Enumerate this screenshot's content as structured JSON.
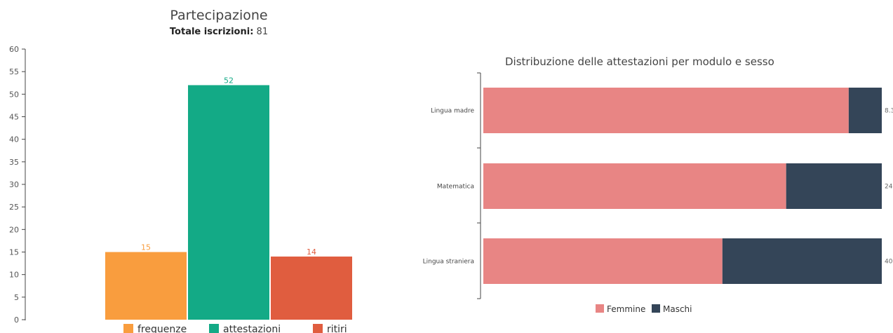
{
  "chart_data": [
    {
      "type": "bar",
      "title": "Partecipazione",
      "subtitle_label": "Totale iscrizioni:",
      "subtitle_value": "81",
      "categories": [
        "frequenze",
        "attestazioni",
        "ritiri"
      ],
      "values": [
        15,
        52,
        14
      ],
      "colors": [
        "#f99d3e",
        "#13aa86",
        "#e05d3f"
      ],
      "ylim": [
        0,
        60
      ],
      "yticks": [
        0,
        5,
        10,
        15,
        20,
        25,
        30,
        35,
        40,
        45,
        50,
        55,
        60
      ],
      "legend_position": "bottom"
    },
    {
      "type": "bar",
      "orientation": "horizontal",
      "stacked": true,
      "title": "Distribuzione delle attestazioni per modulo e sesso",
      "categories": [
        "Lingua madre",
        "Matematica",
        "Lingua straniera"
      ],
      "series": [
        {
          "name": "Femmine",
          "color": "#e88584",
          "values": [
            91.7,
            76,
            60
          ]
        },
        {
          "name": "Maschi",
          "color": "#344558",
          "values": [
            8.3,
            24,
            40
          ]
        }
      ],
      "xlim": [
        0,
        100
      ],
      "legend_position": "bottom"
    }
  ]
}
